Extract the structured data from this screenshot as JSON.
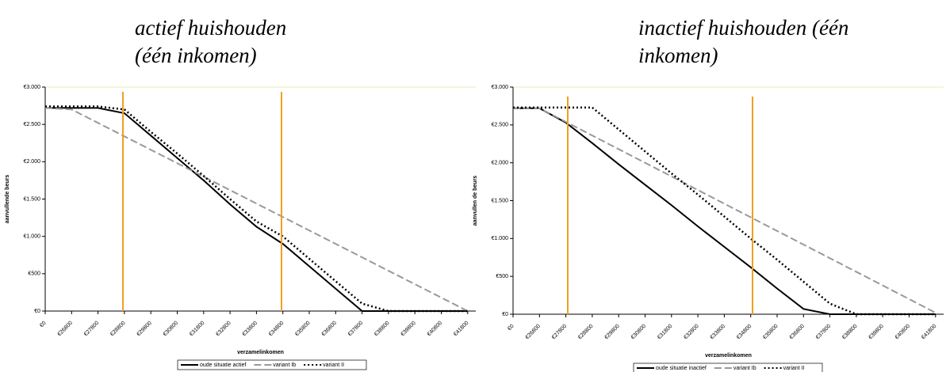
{
  "chart_data": [
    {
      "type": "line",
      "title": [
        "actief huishouden",
        "(één inkomen)"
      ],
      "x_label": "verzamelinkomen",
      "y_label": "aanvullende beurs",
      "categories": [
        "€0",
        "€26800",
        "€27800",
        "€28800",
        "€29800",
        "€30800",
        "€31800",
        "€32800",
        "€33800",
        "€34800",
        "€35800",
        "€36800",
        "€37800",
        "€38800",
        "€39800",
        "€40800",
        "€41800"
      ],
      "ylim": [
        0,
        3000
      ],
      "yticks": [
        {
          "value": 0,
          "label": "€0"
        },
        {
          "value": 500,
          "label": "€500"
        },
        {
          "value": 1000,
          "label": "€1.000"
        },
        {
          "value": 1500,
          "label": "€1.500"
        },
        {
          "value": 2000,
          "label": "€2.000"
        },
        {
          "value": 2500,
          "label": "€2.500"
        },
        {
          "value": 3000,
          "label": "€3.000"
        }
      ],
      "series": [
        {
          "name": "oude situatie actief",
          "color": "#000000",
          "line_style": "solid",
          "values": [
            2720,
            2720,
            2720,
            2650,
            2350,
            2050,
            1750,
            1430,
            1130,
            900,
            600,
            300,
            0,
            0,
            0,
            0,
            0
          ]
        },
        {
          "name": "variant Ib",
          "color": "#999999",
          "line_style": "dashed",
          "values": [
            2720,
            2700,
            2520,
            2340,
            2160,
            1980,
            1800,
            1620,
            1440,
            1260,
            1080,
            900,
            720,
            540,
            360,
            180,
            0
          ]
        },
        {
          "name": "variant II",
          "color": "#000000",
          "line_style": "dotted",
          "values": [
            2740,
            2740,
            2740,
            2700,
            2400,
            2110,
            1810,
            1500,
            1200,
            1000,
            700,
            400,
            100,
            0,
            0,
            0,
            0
          ]
        }
      ]
    },
    {
      "type": "line",
      "title": [
        "inactief huishouden (één",
        "inkomen)"
      ],
      "x_label": "verzamelinkomen",
      "y_label": "aanvullen de beurs",
      "categories": [
        "€0",
        "€26800",
        "€27800",
        "€28800",
        "€29800",
        "€30800",
        "€31800",
        "€32800",
        "€33800",
        "€34800",
        "€35800",
        "€36800",
        "€37800",
        "€38800",
        "€39800",
        "€40800",
        "€41800"
      ],
      "ylim": [
        0,
        3000
      ],
      "yticks": [
        {
          "value": 0,
          "label": "€0"
        },
        {
          "value": 500,
          "label": "€500"
        },
        {
          "value": 1000,
          "label": "€1.000"
        },
        {
          "value": 1500,
          "label": "€1.500"
        },
        {
          "value": 2000,
          "label": "€2.000"
        },
        {
          "value": 2500,
          "label": "€2.500"
        },
        {
          "value": 3000,
          "label": "€3.000"
        }
      ],
      "series": [
        {
          "name": "oude situatie inactief",
          "color": "#000000",
          "line_style": "solid",
          "values": [
            2720,
            2720,
            2530,
            2260,
            1980,
            1710,
            1440,
            1160,
            890,
            620,
            340,
            70,
            0,
            0,
            0,
            0,
            0
          ]
        },
        {
          "name": "variant Ib",
          "color": "#999999",
          "line_style": "dashed",
          "values": [
            2720,
            2720,
            2540,
            2360,
            2180,
            2000,
            1820,
            1640,
            1460,
            1280,
            1100,
            920,
            740,
            560,
            380,
            200,
            20
          ]
        },
        {
          "name": "variant II",
          "color": "#000000",
          "line_style": "dotted",
          "values": [
            2730,
            2730,
            2730,
            2730,
            2440,
            2150,
            1860,
            1580,
            1290,
            1000,
            720,
            430,
            140,
            0,
            0,
            0,
            0
          ]
        }
      ]
    }
  ]
}
